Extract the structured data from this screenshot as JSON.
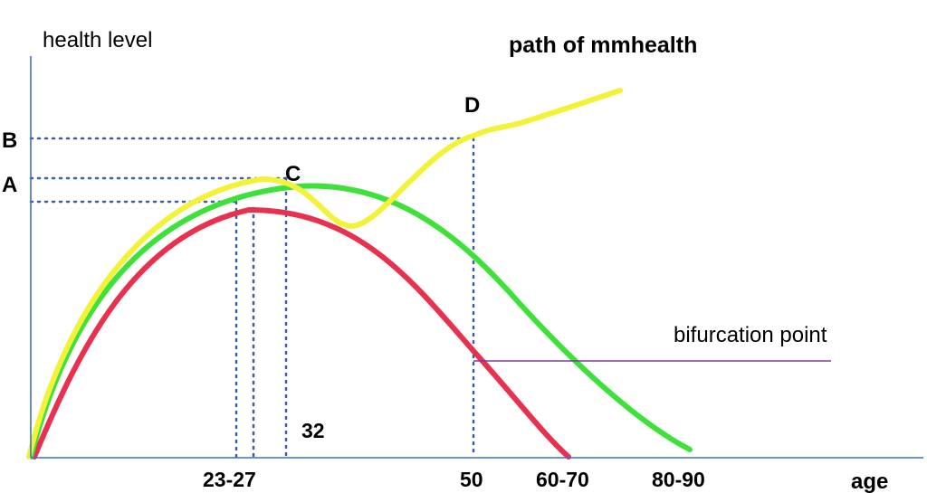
{
  "diagram": {
    "y_axis_label": "health level",
    "x_axis_label": "age",
    "title": "path of mmhealth",
    "callout": "bifurcation point",
    "level_labels": {
      "a": "A",
      "b": "B"
    },
    "point_labels": {
      "c": "C",
      "d": "D"
    },
    "age_ticks": {
      "t23_27": "23-27",
      "t32": "32",
      "t50": "50",
      "t60_70": "60-70",
      "t80_90": "80-90"
    },
    "colors": {
      "red_curve": "#e8304f",
      "green_curve": "#3ee03a",
      "yellow_curve": "#f2f238",
      "axis": "#3b6fd1",
      "guides": "#3b5da8",
      "callout_line": "#7a3a9c"
    }
  }
}
